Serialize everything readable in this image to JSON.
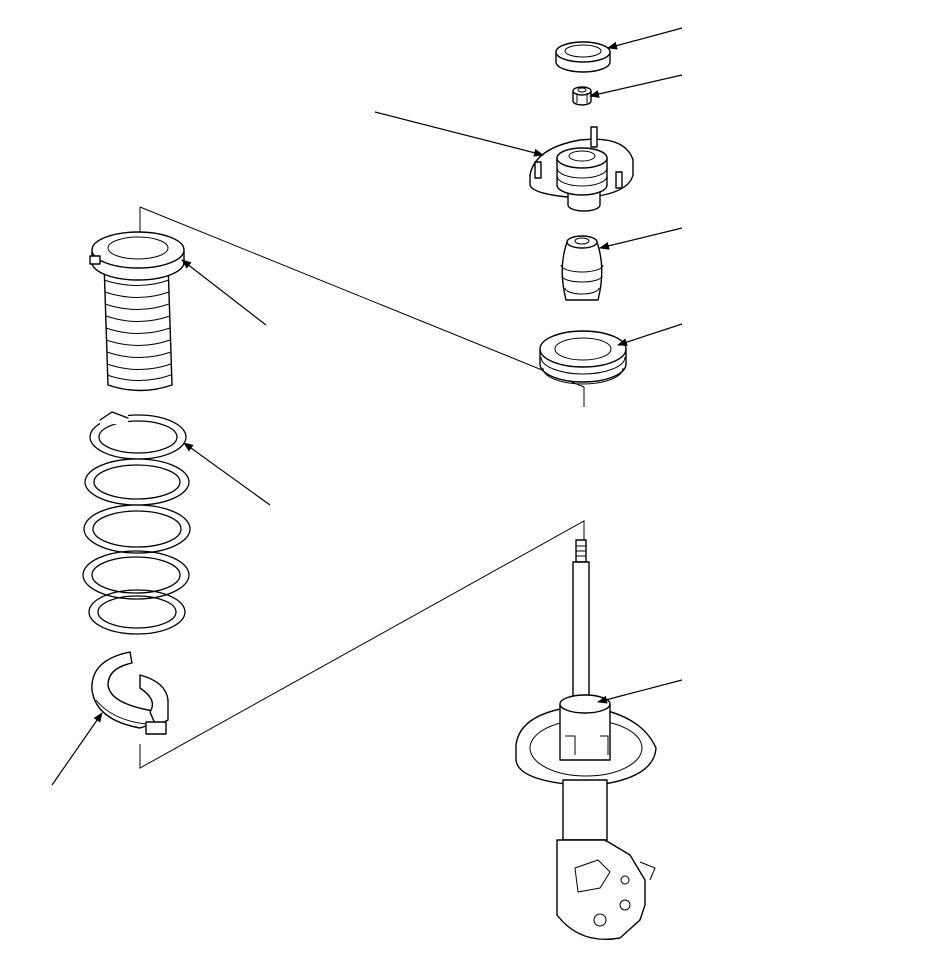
{
  "diagram": {
    "kind": "exploded-view",
    "colors": {
      "line": "#000000",
      "background": "#ffffff"
    },
    "parts": [
      {
        "id": "upper-washer",
        "icon": "washer-icon"
      },
      {
        "id": "self-locking-nut",
        "icon": "nut-icon"
      },
      {
        "id": "upper-mount",
        "icon": "strut-mount-icon"
      },
      {
        "id": "bump-stop",
        "icon": "bump-stop-icon"
      },
      {
        "id": "spring-mounting-cushion",
        "icon": "cushion-ring-icon"
      },
      {
        "id": "dust-cover",
        "icon": "boot-icon"
      },
      {
        "id": "coil-spring",
        "icon": "coil-spring-icon"
      },
      {
        "id": "lower-spring-seat",
        "icon": "spring-seat-icon"
      },
      {
        "id": "damper-unit",
        "icon": "damper-icon"
      }
    ],
    "labels": []
  }
}
